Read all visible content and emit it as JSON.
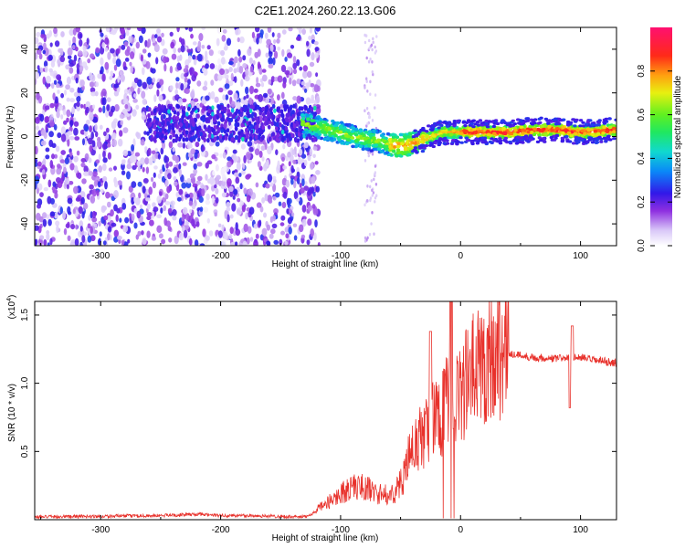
{
  "title": "C2E1.2024.260.22.13.G06",
  "chart_data": [
    {
      "type": "heatmap",
      "xlabel": "Height of straight line (km)",
      "ylabel": "Frequency (Hz)",
      "xlim": [
        -355,
        130
      ],
      "ylim": [
        -50,
        50
      ],
      "xticks": [
        -300,
        -200,
        -100,
        0,
        100
      ],
      "yticks": [
        -40,
        -20,
        0,
        20,
        40
      ],
      "ridge_x": [
        -130,
        -110,
        -90,
        -70,
        -55,
        -45,
        -35,
        -25,
        -15,
        -5,
        0,
        20,
        40,
        60,
        80,
        100,
        130
      ],
      "ridge_y": [
        6,
        3,
        0,
        -2,
        -4,
        -4,
        -2,
        0,
        2,
        2,
        2,
        2,
        2,
        3,
        3,
        2,
        3
      ],
      "colorbar": {
        "label": "Normalized spectral amplitude",
        "range": [
          0,
          1
        ],
        "ticks": [
          "0.0",
          "0.2",
          "0.4",
          "0.6",
          "0.8"
        ],
        "tick_values": [
          0,
          0.2,
          0.4,
          0.6,
          0.8
        ]
      }
    },
    {
      "type": "line",
      "xlabel": "Height of straight line (km)",
      "ylabel": "SNR (10 * v/v)",
      "scale_label": "(x10",
      "scale_exp": "4",
      "scale_close": ")",
      "xlim": [
        -355,
        130
      ],
      "ylim": [
        0,
        1.6
      ],
      "xticks": [
        -300,
        -200,
        -100,
        0,
        100
      ],
      "yticks": [
        "0.5",
        "1.0",
        "1.5"
      ],
      "ytick_values": [
        0.5,
        1.0,
        1.5
      ],
      "color": "#e8312b",
      "envelope_x": [
        -355,
        -250,
        -220,
        -200,
        -180,
        -130,
        -115,
        -100,
        -90,
        -80,
        -70,
        -60,
        -50,
        -40,
        -30,
        -20,
        -10,
        0,
        10,
        20,
        30,
        40,
        60,
        80,
        90,
        100,
        110,
        130
      ],
      "envelope_y": [
        0.02,
        0.03,
        0.04,
        0.03,
        0.03,
        0.02,
        0.08,
        0.16,
        0.2,
        0.2,
        0.16,
        0.15,
        0.25,
        0.5,
        0.6,
        0.72,
        0.82,
        0.9,
        1.02,
        1.12,
        1.18,
        1.22,
        1.19,
        1.18,
        1.19,
        1.19,
        1.17,
        1.15
      ]
    }
  ]
}
